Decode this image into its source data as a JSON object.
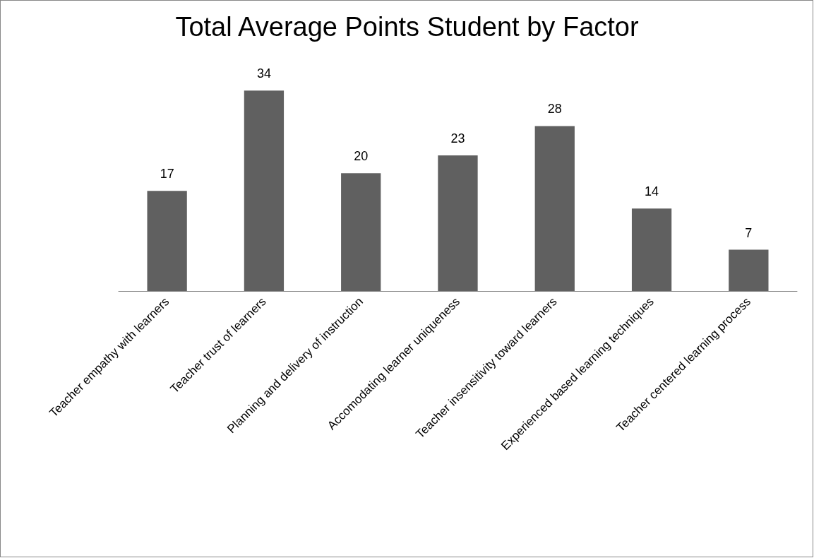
{
  "chart_data": {
    "type": "bar",
    "title": "Total Average Points Student by Factor",
    "categories": [
      "Teacher empathy with learners",
      "Teacher trust of learners",
      "Planning and delivery of instruction",
      "Accomodating learner uniqueness",
      "Teacher insensitivity toward learners",
      "Experienced based learning techniques",
      "Teacher centered learning process"
    ],
    "values": [
      17,
      34,
      20,
      23,
      28,
      14,
      7
    ],
    "color": "#606060",
    "data_labels": true
  }
}
